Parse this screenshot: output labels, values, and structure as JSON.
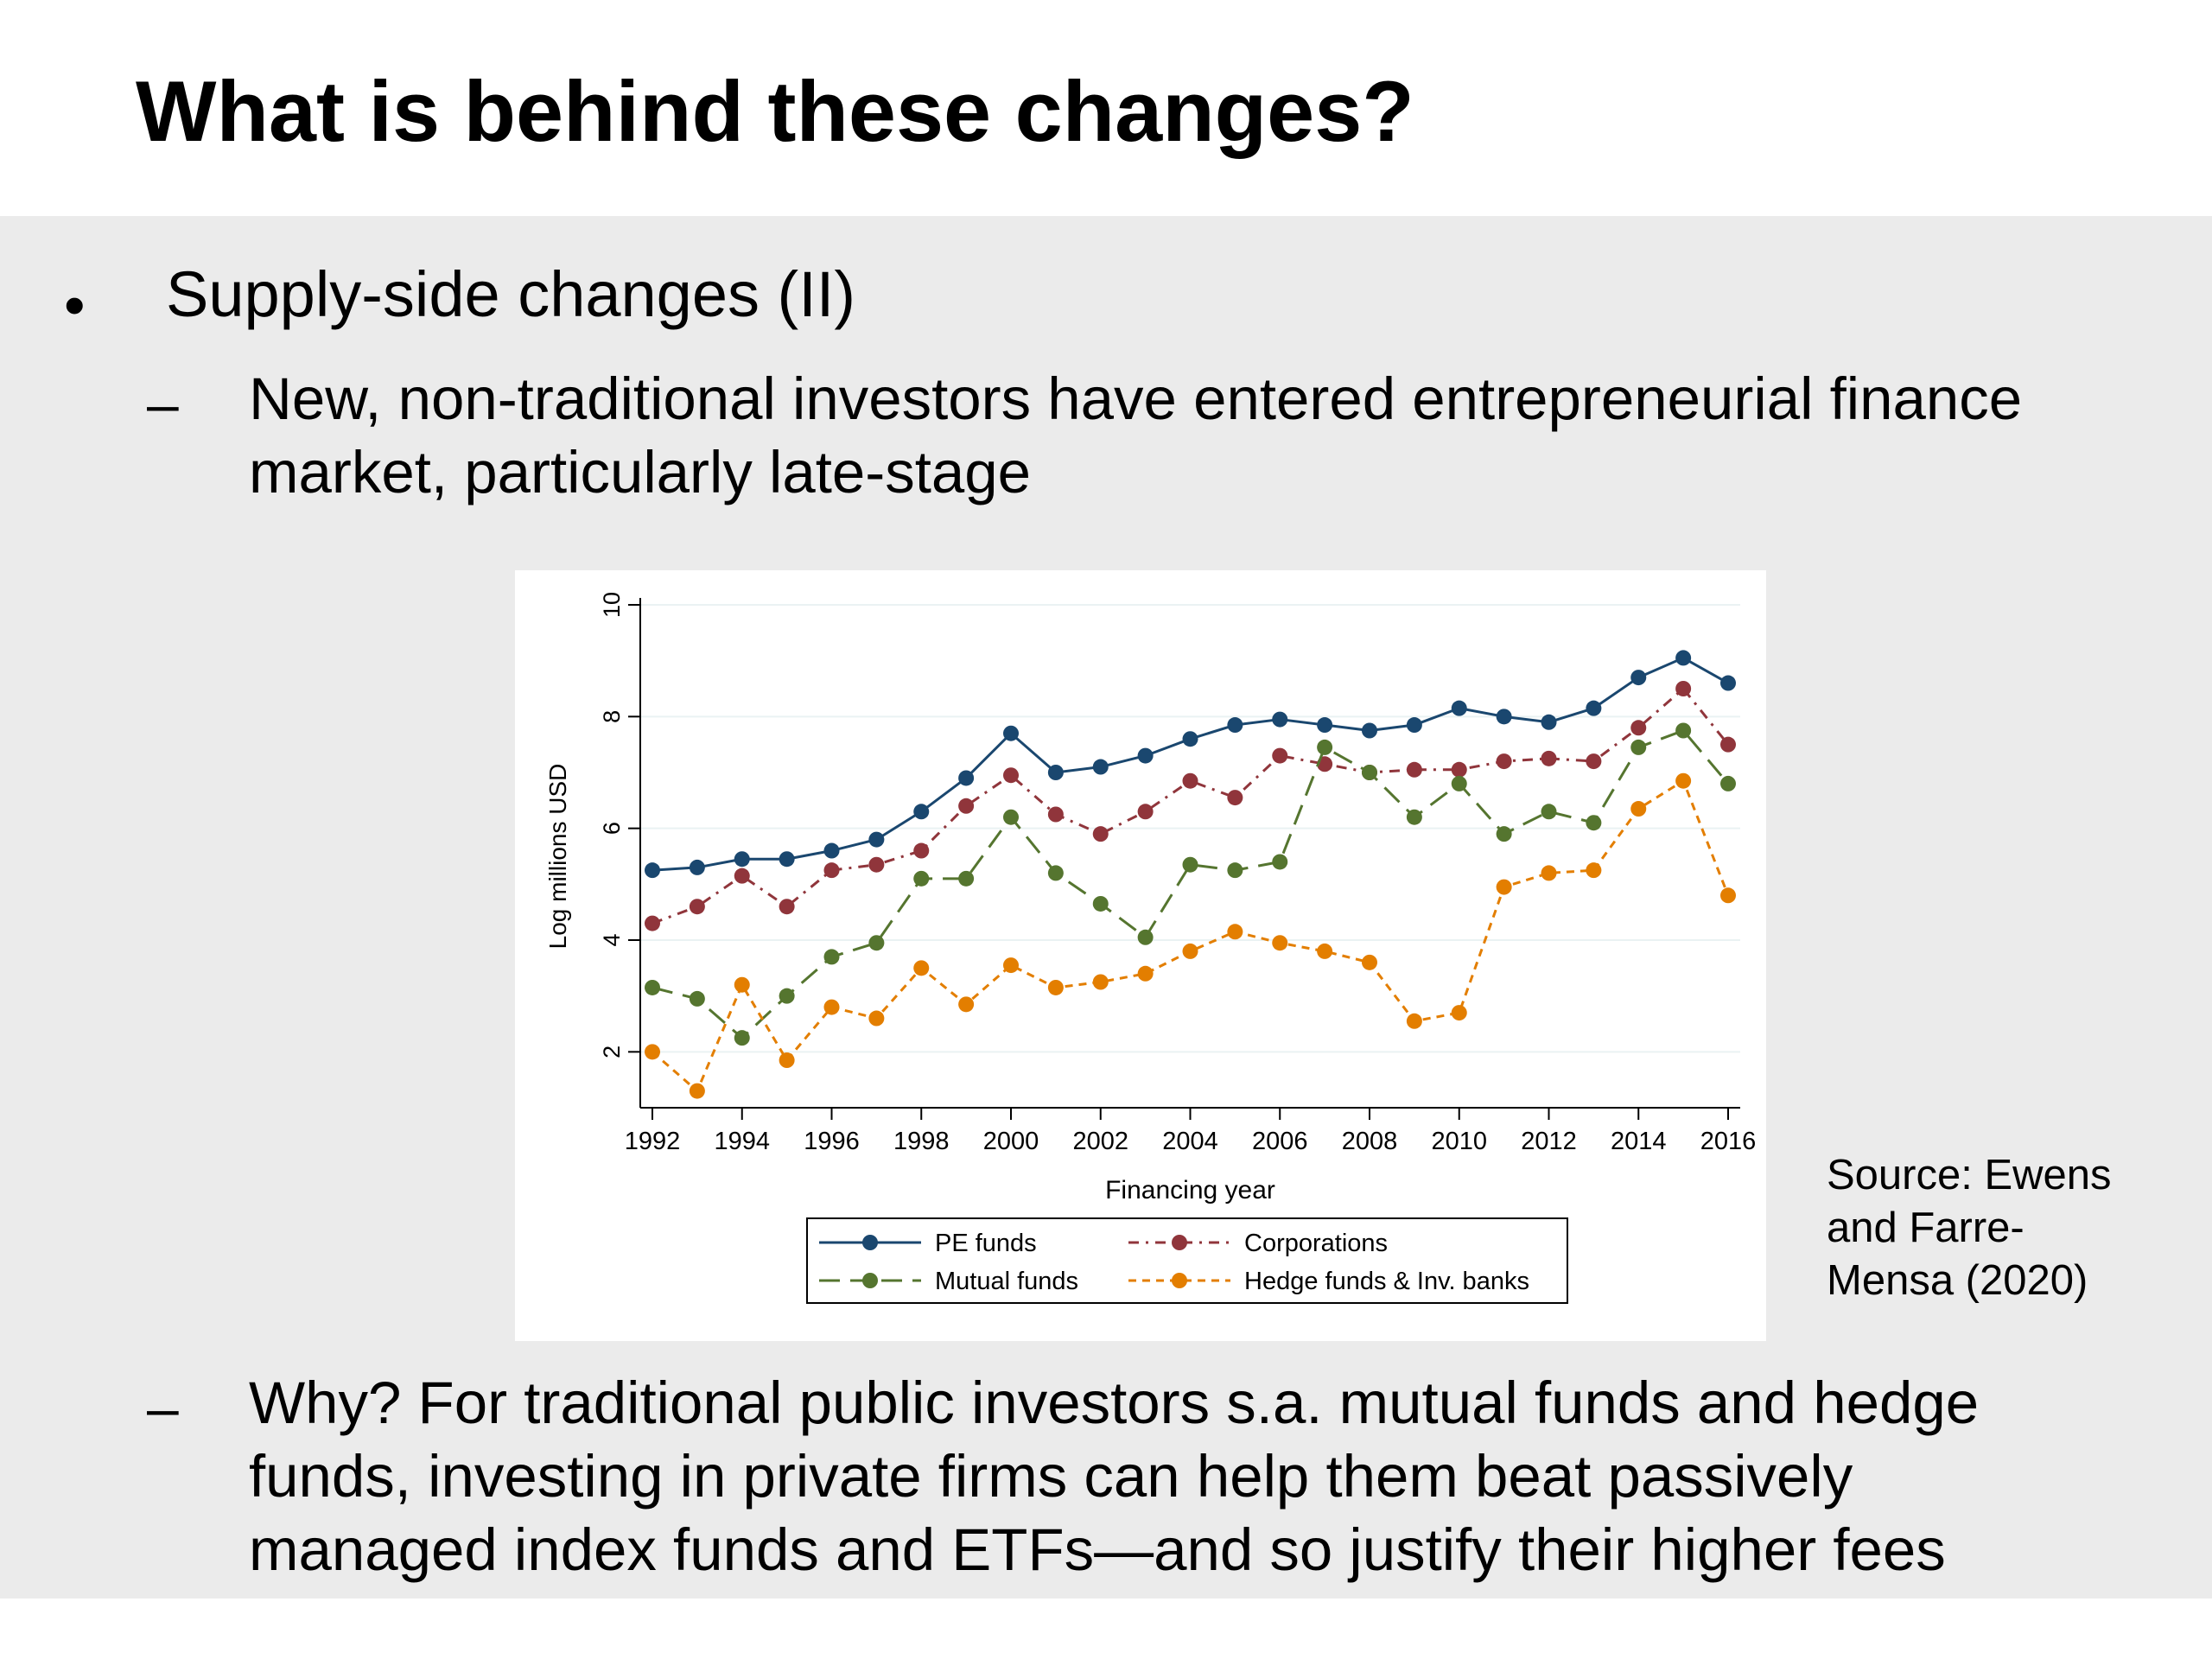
{
  "slide": {
    "title": "What is behind these changes?",
    "bullet": {
      "symbol": "•",
      "text": "Supply-side changes (II)"
    },
    "sub_points": [
      {
        "symbol": "–",
        "lines": [
          "New, non-traditional investors have entered entrepreneurial finance",
          "market, particularly late-stage"
        ]
      },
      {
        "symbol": "–",
        "lines": [
          "Why? For traditional public investors s.a. mutual funds and hedge",
          "funds, investing in private firms can help them beat passively",
          "managed index funds and ETFs—and so justify their higher fees"
        ]
      }
    ],
    "source_lines": [
      "Source: Ewens",
      "and Farre-",
      "Mensa (2020)"
    ]
  },
  "chart_data": {
    "type": "line",
    "title": "",
    "xlabel": "Financing year",
    "ylabel": "Log millions USD",
    "xlim": [
      1992,
      2016
    ],
    "ylim": [
      1,
      10
    ],
    "x_ticks": [
      1992,
      1994,
      1996,
      1998,
      2000,
      2002,
      2004,
      2006,
      2008,
      2010,
      2012,
      2014,
      2016
    ],
    "y_ticks": [
      2,
      4,
      6,
      8,
      10
    ],
    "grid": true,
    "legend_position": "bottom",
    "x": [
      1992,
      1993,
      1994,
      1995,
      1996,
      1997,
      1998,
      1999,
      2000,
      2001,
      2002,
      2003,
      2004,
      2005,
      2006,
      2007,
      2008,
      2009,
      2010,
      2011,
      2012,
      2013,
      2014,
      2015,
      2016
    ],
    "series": [
      {
        "name": "PE funds",
        "color": "#1a476f",
        "dash": "solid",
        "values": [
          5.25,
          5.3,
          5.45,
          5.45,
          5.6,
          5.8,
          6.3,
          6.9,
          7.7,
          7.0,
          7.1,
          7.3,
          7.6,
          7.85,
          7.95,
          7.85,
          7.75,
          7.85,
          8.15,
          8.0,
          7.9,
          8.15,
          8.7,
          9.05,
          8.6
        ]
      },
      {
        "name": "Corporations",
        "color": "#90353b",
        "dash": "dashdot",
        "values": [
          4.3,
          4.6,
          5.15,
          4.6,
          5.25,
          5.35,
          5.6,
          6.4,
          6.95,
          6.25,
          5.9,
          6.3,
          6.85,
          6.55,
          7.3,
          7.15,
          7.0,
          7.05,
          7.05,
          7.2,
          7.25,
          7.2,
          7.8,
          8.5,
          7.5
        ]
      },
      {
        "name": "Mutual funds",
        "color": "#55752f",
        "dash": "longdash",
        "values": [
          3.15,
          2.95,
          2.25,
          3.0,
          3.7,
          3.95,
          5.1,
          5.1,
          6.2,
          5.2,
          4.65,
          4.05,
          5.35,
          5.25,
          5.4,
          7.45,
          7.0,
          6.2,
          6.8,
          5.9,
          6.3,
          6.1,
          7.45,
          7.75,
          6.8
        ]
      },
      {
        "name": "Hedge funds & Inv. banks",
        "color": "#e37e00",
        "dash": "shortdash",
        "values": [
          2.0,
          1.3,
          3.2,
          1.85,
          2.8,
          2.6,
          3.5,
          2.85,
          3.55,
          3.15,
          3.25,
          3.4,
          3.8,
          4.15,
          3.95,
          3.8,
          3.6,
          2.55,
          2.7,
          4.95,
          5.2,
          5.25,
          6.35,
          6.85,
          4.8
        ]
      }
    ]
  }
}
